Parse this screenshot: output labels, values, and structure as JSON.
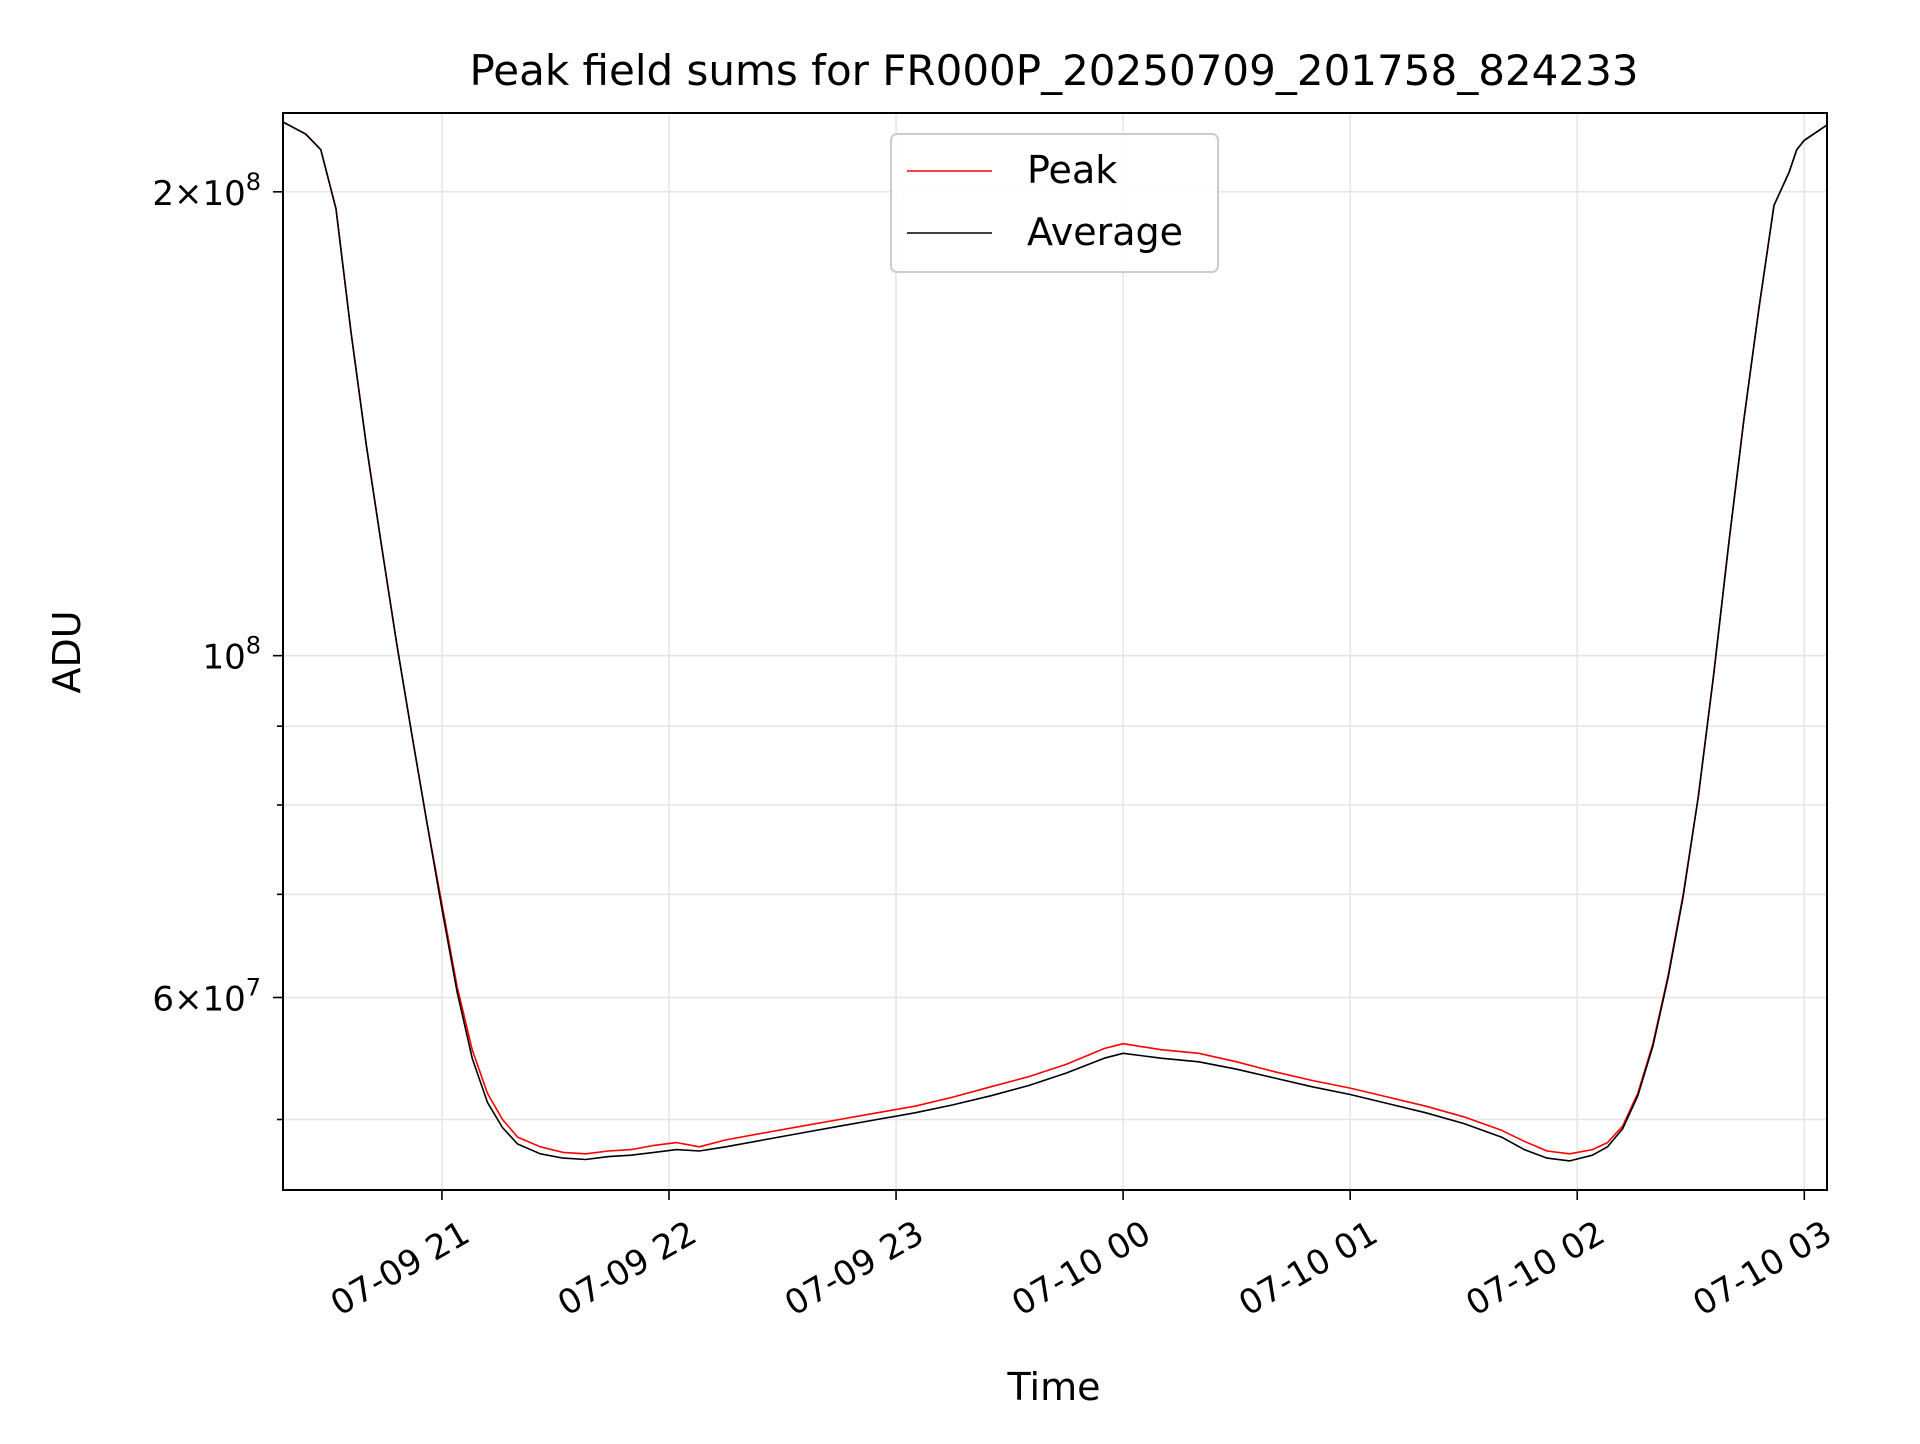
{
  "chart_data": {
    "type": "line",
    "title": "Peak field sums for FR000P_20250709_201758_824233",
    "xlabel": "Time",
    "ylabel": "ADU",
    "x_axis_type": "datetime",
    "xlim": [
      "2025-07-09 20:18",
      "2025-07-10 03:06"
    ],
    "y_scale": "log",
    "ylim": [
      45000000,
      225000000
    ],
    "grid": true,
    "legend_position": "upper center",
    "x_ticks": [
      {
        "label": "07-09 21",
        "value": "2025-07-09 21:00"
      },
      {
        "label": "07-09 22",
        "value": "2025-07-09 22:00"
      },
      {
        "label": "07-09 23",
        "value": "2025-07-09 23:00"
      },
      {
        "label": "07-10 00",
        "value": "2025-07-10 00:00"
      },
      {
        "label": "07-10 01",
        "value": "2025-07-10 01:00"
      },
      {
        "label": "07-10 02",
        "value": "2025-07-10 02:00"
      },
      {
        "label": "07-10 03",
        "value": "2025-07-10 03:00"
      }
    ],
    "y_ticks_major": [
      {
        "value": 60000000,
        "mantissa": "6",
        "exponent": "7"
      },
      {
        "value": 100000000,
        "mantissa": "",
        "exponent": "8"
      },
      {
        "value": 200000000,
        "mantissa": "2",
        "exponent": "8"
      }
    ],
    "y_ticks_minor": [
      50000000,
      70000000,
      80000000,
      90000000
    ],
    "series": [
      {
        "name": "Peak",
        "color": "#ff0000",
        "x": [
          "2025-07-09 20:18",
          "2025-07-09 20:24",
          "2025-07-09 20:28",
          "2025-07-09 20:32",
          "2025-07-09 20:36",
          "2025-07-09 20:40",
          "2025-07-09 20:44",
          "2025-07-09 20:48",
          "2025-07-09 20:52",
          "2025-07-09 20:56",
          "2025-07-09 21:00",
          "2025-07-09 21:04",
          "2025-07-09 21:08",
          "2025-07-09 21:12",
          "2025-07-09 21:16",
          "2025-07-09 21:20",
          "2025-07-09 21:26",
          "2025-07-09 21:32",
          "2025-07-09 21:38",
          "2025-07-09 21:44",
          "2025-07-09 21:50",
          "2025-07-09 21:56",
          "2025-07-09 22:02",
          "2025-07-09 22:08",
          "2025-07-09 22:15",
          "2025-07-09 22:25",
          "2025-07-09 22:35",
          "2025-07-09 22:45",
          "2025-07-09 22:55",
          "2025-07-09 23:05",
          "2025-07-09 23:15",
          "2025-07-09 23:25",
          "2025-07-09 23:35",
          "2025-07-09 23:45",
          "2025-07-09 23:55",
          "2025-07-10 00:00",
          "2025-07-10 00:10",
          "2025-07-10 00:20",
          "2025-07-10 00:30",
          "2025-07-10 00:40",
          "2025-07-10 00:50",
          "2025-07-10 01:00",
          "2025-07-10 01:10",
          "2025-07-10 01:20",
          "2025-07-10 01:30",
          "2025-07-10 01:40",
          "2025-07-10 01:46",
          "2025-07-10 01:52",
          "2025-07-10 01:58",
          "2025-07-10 02:04",
          "2025-07-10 02:08",
          "2025-07-10 02:12",
          "2025-07-10 02:16",
          "2025-07-10 02:20",
          "2025-07-10 02:24",
          "2025-07-10 02:28",
          "2025-07-10 02:32",
          "2025-07-10 02:36",
          "2025-07-10 02:40",
          "2025-07-10 02:44",
          "2025-07-10 02:48",
          "2025-07-10 02:52",
          "2025-07-10 02:56",
          "2025-07-10 02:58",
          "2025-07-10 03:00",
          "2025-07-10 03:06"
        ],
        "y": [
          222000000,
          218000000,
          213000000,
          195000000,
          162000000,
          137000000,
          118000000,
          102000000,
          89000000,
          78000000,
          69000000,
          61000000,
          55500000,
          52000000,
          50000000,
          48700000,
          48000000,
          47600000,
          47500000,
          47700000,
          47800000,
          48100000,
          48300000,
          48000000,
          48500000,
          49000000,
          49500000,
          50000000,
          50500000,
          51000000,
          51700000,
          52500000,
          53300000,
          54300000,
          55600000,
          56000000,
          55500000,
          55200000,
          54500000,
          53700000,
          53000000,
          52400000,
          51700000,
          51000000,
          50200000,
          49200000,
          48400000,
          47700000,
          47500000,
          47800000,
          48300000,
          49500000,
          52000000,
          56000000,
          62000000,
          70000000,
          81000000,
          97000000,
          118000000,
          142000000,
          168000000,
          196000000,
          206000000,
          213000000,
          216000000,
          221000000
        ]
      },
      {
        "name": "Average",
        "color": "#000000",
        "x": [
          "2025-07-09 20:18",
          "2025-07-09 20:24",
          "2025-07-09 20:28",
          "2025-07-09 20:32",
          "2025-07-09 20:36",
          "2025-07-09 20:40",
          "2025-07-09 20:44",
          "2025-07-09 20:48",
          "2025-07-09 20:52",
          "2025-07-09 20:56",
          "2025-07-09 21:00",
          "2025-07-09 21:04",
          "2025-07-09 21:08",
          "2025-07-09 21:12",
          "2025-07-09 21:16",
          "2025-07-09 21:20",
          "2025-07-09 21:26",
          "2025-07-09 21:32",
          "2025-07-09 21:38",
          "2025-07-09 21:44",
          "2025-07-09 21:50",
          "2025-07-09 21:56",
          "2025-07-09 22:02",
          "2025-07-09 22:08",
          "2025-07-09 22:15",
          "2025-07-09 22:25",
          "2025-07-09 22:35",
          "2025-07-09 22:45",
          "2025-07-09 22:55",
          "2025-07-09 23:05",
          "2025-07-09 23:15",
          "2025-07-09 23:25",
          "2025-07-09 23:35",
          "2025-07-09 23:45",
          "2025-07-09 23:55",
          "2025-07-10 00:00",
          "2025-07-10 00:10",
          "2025-07-10 00:20",
          "2025-07-10 00:30",
          "2025-07-10 00:40",
          "2025-07-10 00:50",
          "2025-07-10 01:00",
          "2025-07-10 01:10",
          "2025-07-10 01:20",
          "2025-07-10 01:30",
          "2025-07-10 01:40",
          "2025-07-10 01:46",
          "2025-07-10 01:52",
          "2025-07-10 01:58",
          "2025-07-10 02:04",
          "2025-07-10 02:08",
          "2025-07-10 02:12",
          "2025-07-10 02:16",
          "2025-07-10 02:20",
          "2025-07-10 02:24",
          "2025-07-10 02:28",
          "2025-07-10 02:32",
          "2025-07-10 02:36",
          "2025-07-10 02:40",
          "2025-07-10 02:44",
          "2025-07-10 02:48",
          "2025-07-10 02:52",
          "2025-07-10 02:56",
          "2025-07-10 02:58",
          "2025-07-10 03:00",
          "2025-07-10 03:06"
        ],
        "y": [
          222000000,
          218000000,
          213000000,
          195000000,
          162000000,
          137000000,
          118000000,
          102000000,
          89000000,
          78000000,
          68500000,
          60500000,
          54800000,
          51300000,
          49400000,
          48200000,
          47500000,
          47200000,
          47100000,
          47300000,
          47400000,
          47600000,
          47800000,
          47700000,
          48000000,
          48500000,
          49000000,
          49500000,
          50000000,
          50500000,
          51100000,
          51800000,
          52600000,
          53600000,
          54800000,
          55200000,
          54800000,
          54500000,
          53900000,
          53200000,
          52500000,
          51900000,
          51200000,
          50500000,
          49700000,
          48700000,
          47800000,
          47200000,
          47000000,
          47400000,
          48000000,
          49300000,
          51800000,
          55800000,
          61800000,
          69800000,
          81000000,
          97000000,
          118000000,
          142000000,
          168000000,
          196000000,
          206000000,
          213000000,
          216000000,
          221000000
        ]
      }
    ]
  }
}
